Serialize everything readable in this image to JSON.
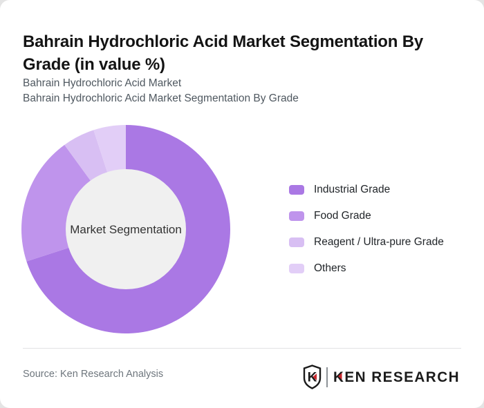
{
  "page": {
    "background": "#e4e4e4",
    "card_background": "#ffffff"
  },
  "header": {
    "title": "Bahrain Hydrochloric Acid Market Segmentation By Grade (in value %)",
    "subtitle_lines": [
      "Bahrain Hydrochloric Acid Market",
      "Bahrain Hydrochloric Acid Market Segmentation By Grade"
    ]
  },
  "chart_data": {
    "type": "pie",
    "variant": "donut",
    "title": "Bahrain Hydrochloric Acid Market Segmentation By Grade (in value %)",
    "unit": "value %",
    "center_label": "Market Segmentation",
    "start_angle_deg": 0,
    "direction": "clockwise",
    "inner_radius_ratio": 0.57,
    "legend_position": "right",
    "labels_on_slices": false,
    "series": [
      {
        "name": "Industrial Grade",
        "value": 70,
        "color": "#aa78e4"
      },
      {
        "name": "Food Grade",
        "value": 20,
        "color": "#bf94ec"
      },
      {
        "name": "Reagent / Ultra-pure Grade",
        "value": 5,
        "color": "#d8bff3"
      },
      {
        "name": "Others",
        "value": 5,
        "color": "#e2cef7"
      }
    ]
  },
  "donut": {
    "center_fill": "#f0f0f0",
    "center_text_color": "#333333"
  },
  "footer": {
    "source_text": "Source: Ken Research Analysis",
    "logo": {
      "shield_letter": "K",
      "wordmark": "KEN RESEARCH",
      "accent_color": "#c9252b",
      "text_color": "#1b1b1b"
    }
  }
}
